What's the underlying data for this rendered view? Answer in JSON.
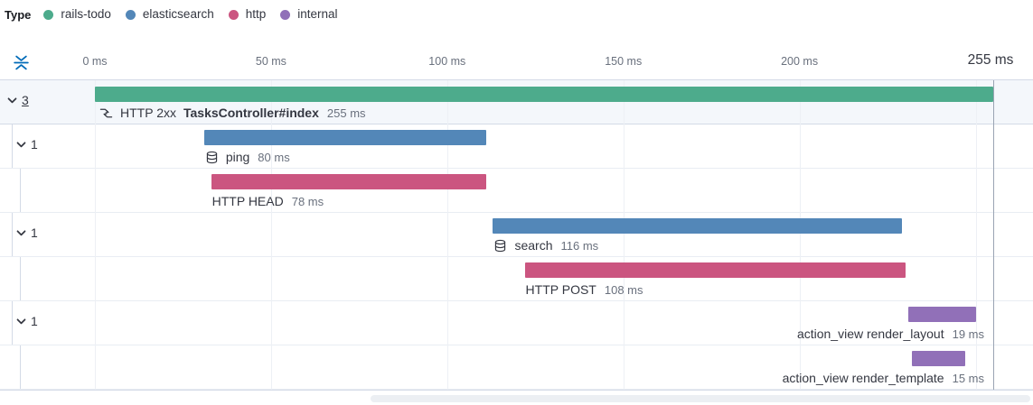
{
  "legend": {
    "title": "Type",
    "items": [
      {
        "label": "rails-todo",
        "color": "#4dab8c"
      },
      {
        "label": "elasticsearch",
        "color": "#5387b8"
      },
      {
        "label": "http",
        "color": "#cb5580"
      },
      {
        "label": "internal",
        "color": "#9170b8"
      }
    ]
  },
  "toolbar": {
    "collapse_all_icon": "fold-icon"
  },
  "chart_data": {
    "type": "waterfall-timeline",
    "unit": "ms",
    "xlim": [
      0,
      255
    ],
    "axis_ticks": [
      {
        "ms": 0,
        "label": "0 ms"
      },
      {
        "ms": 50,
        "label": "50 ms"
      },
      {
        "ms": 100,
        "label": "100 ms"
      },
      {
        "ms": 150,
        "label": "150 ms"
      },
      {
        "ms": 200,
        "label": "200 ms"
      },
      {
        "ms": 250,
        "label": ""
      }
    ],
    "end_marker": {
      "ms": 255,
      "label": "255 ms"
    },
    "spans": [
      {
        "depth": 0,
        "toggle_count": "3",
        "toggle_underlined": true,
        "selected": true,
        "service": "rails-todo",
        "icon": "transaction-icon",
        "prefix": "HTTP 2xx",
        "name": "TasksController#index",
        "name_bold": true,
        "start_ms": 0,
        "duration_ms": 255,
        "duration_label": "255 ms",
        "label_align": "left"
      },
      {
        "depth": 1,
        "toggle_count": "1",
        "service": "elasticsearch",
        "icon": "database-icon",
        "name": "ping",
        "start_ms": 31,
        "duration_ms": 80,
        "duration_label": "80 ms",
        "label_align": "left"
      },
      {
        "depth": 2,
        "service": "http",
        "name": "HTTP HEAD",
        "start_ms": 33,
        "duration_ms": 78,
        "duration_label": "78 ms",
        "label_align": "left"
      },
      {
        "depth": 1,
        "toggle_count": "1",
        "service": "elasticsearch",
        "icon": "database-icon",
        "name": "search",
        "start_ms": 113,
        "duration_ms": 116,
        "duration_label": "116 ms",
        "label_align": "left"
      },
      {
        "depth": 2,
        "service": "http",
        "name": "HTTP POST",
        "start_ms": 122,
        "duration_ms": 108,
        "duration_label": "108 ms",
        "label_align": "left"
      },
      {
        "depth": 1,
        "toggle_count": "1",
        "service": "internal",
        "name": "action_view render_layout",
        "start_ms": 231,
        "duration_ms": 19,
        "duration_label": "19 ms",
        "label_align": "right"
      },
      {
        "depth": 2,
        "service": "internal",
        "name": "action_view render_template",
        "start_ms": 232,
        "duration_ms": 15,
        "duration_label": "15 ms",
        "label_align": "right"
      }
    ]
  },
  "colors": {
    "rails-todo": "#4dab8c",
    "elasticsearch": "#5387b8",
    "http": "#cb5580",
    "internal": "#9170b8",
    "gridline": "#edf0f5",
    "end_line": "#9aa4b3",
    "guide": "#d3dae6",
    "selected_bg": "#f4f7fb",
    "text": "#343741",
    "muted": "#69707d",
    "accent": "#006bb8"
  }
}
